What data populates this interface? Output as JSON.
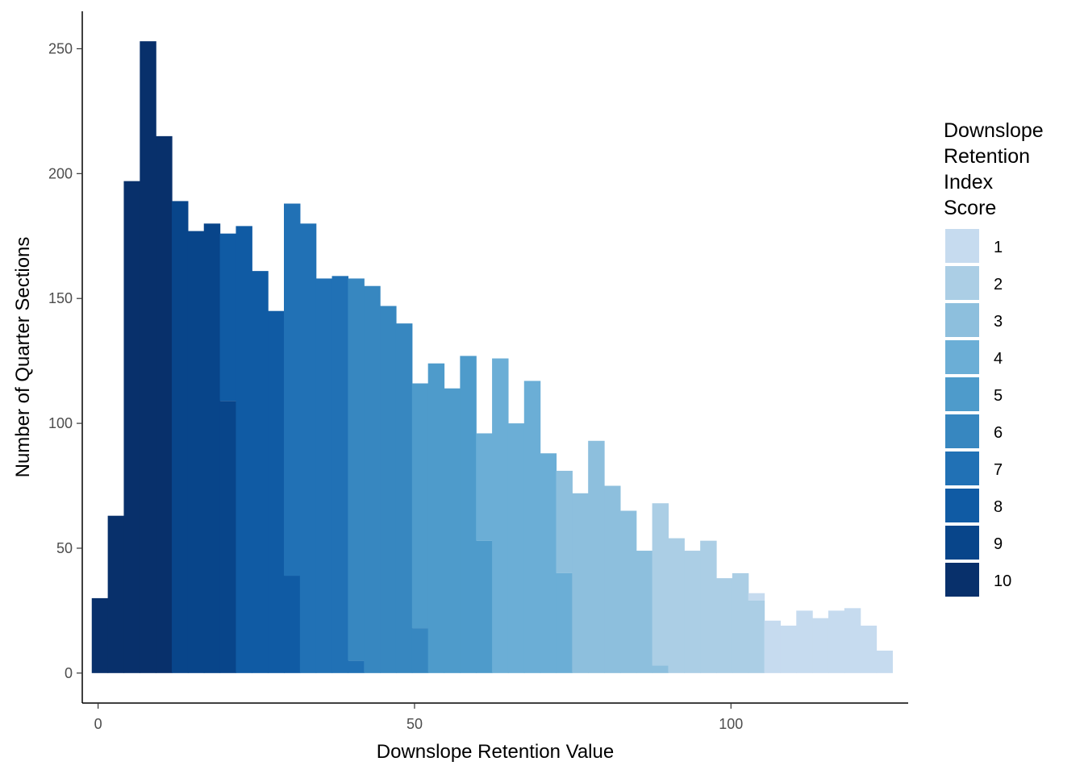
{
  "chart_data": {
    "type": "bar",
    "subtype": "stacked-histogram",
    "xlabel": "Downslope Retention Value",
    "ylabel": "Number of Quarter Sections",
    "xlim": [
      -2.5,
      128
    ],
    "ylim": [
      -12,
      265
    ],
    "x_ticks": [
      0,
      50,
      100
    ],
    "y_ticks": [
      0,
      50,
      100,
      150,
      200,
      250
    ],
    "grid": false,
    "legend": {
      "title_lines": [
        "Downslope",
        "Retention",
        "Index",
        "Score"
      ],
      "placement": "right",
      "items": [
        {
          "label": "1",
          "color": "#c6dbef"
        },
        {
          "label": "2",
          "color": "#abcee5"
        },
        {
          "label": "3",
          "color": "#8dbfdd"
        },
        {
          "label": "4",
          "color": "#6baed6"
        },
        {
          "label": "5",
          "color": "#4e9bcb"
        },
        {
          "label": "6",
          "color": "#3787c0"
        },
        {
          "label": "7",
          "color": "#2171b5"
        },
        {
          "label": "8",
          "color": "#105ba4"
        },
        {
          "label": "9",
          "color": "#08458a"
        },
        {
          "label": "10",
          "color": "#08306b"
        }
      ]
    },
    "bin_width": 2.53,
    "bins": [
      {
        "x0": -1.0,
        "segments": [
          {
            "score": "10",
            "count": 30
          }
        ]
      },
      {
        "x0": 1.53,
        "segments": [
          {
            "score": "10",
            "count": 63
          }
        ]
      },
      {
        "x0": 4.06,
        "segments": [
          {
            "score": "10",
            "count": 197
          }
        ]
      },
      {
        "x0": 6.59,
        "segments": [
          {
            "score": "10",
            "count": 253
          }
        ]
      },
      {
        "x0": 9.12,
        "segments": [
          {
            "score": "10",
            "count": 215
          }
        ]
      },
      {
        "x0": 11.65,
        "segments": [
          {
            "score": "9",
            "count": 189
          }
        ]
      },
      {
        "x0": 14.18,
        "segments": [
          {
            "score": "9",
            "count": 177
          }
        ]
      },
      {
        "x0": 16.71,
        "segments": [
          {
            "score": "9",
            "count": 180
          }
        ]
      },
      {
        "x0": 19.24,
        "segments": [
          {
            "score": "9",
            "count": 109
          },
          {
            "score": "8",
            "count": 67
          }
        ]
      },
      {
        "x0": 21.77,
        "segments": [
          {
            "score": "8",
            "count": 179
          }
        ]
      },
      {
        "x0": 24.3,
        "segments": [
          {
            "score": "8",
            "count": 161
          }
        ]
      },
      {
        "x0": 26.83,
        "segments": [
          {
            "score": "8",
            "count": 145
          }
        ]
      },
      {
        "x0": 29.36,
        "segments": [
          {
            "score": "8",
            "count": 39
          },
          {
            "score": "7",
            "count": 149
          }
        ]
      },
      {
        "x0": 31.89,
        "segments": [
          {
            "score": "7",
            "count": 180
          }
        ]
      },
      {
        "x0": 34.42,
        "segments": [
          {
            "score": "7",
            "count": 158
          }
        ]
      },
      {
        "x0": 36.95,
        "segments": [
          {
            "score": "7",
            "count": 159
          }
        ]
      },
      {
        "x0": 39.48,
        "segments": [
          {
            "score": "7",
            "count": 5
          },
          {
            "score": "6",
            "count": 153
          }
        ]
      },
      {
        "x0": 42.01,
        "segments": [
          {
            "score": "6",
            "count": 155
          }
        ]
      },
      {
        "x0": 44.54,
        "segments": [
          {
            "score": "6",
            "count": 147
          }
        ]
      },
      {
        "x0": 47.07,
        "segments": [
          {
            "score": "6",
            "count": 140
          }
        ]
      },
      {
        "x0": 49.6,
        "segments": [
          {
            "score": "6",
            "count": 18
          },
          {
            "score": "5",
            "count": 98
          }
        ]
      },
      {
        "x0": 52.13,
        "segments": [
          {
            "score": "5",
            "count": 124
          }
        ]
      },
      {
        "x0": 54.66,
        "segments": [
          {
            "score": "5",
            "count": 114
          }
        ]
      },
      {
        "x0": 57.19,
        "segments": [
          {
            "score": "5",
            "count": 127
          }
        ]
      },
      {
        "x0": 59.72,
        "segments": [
          {
            "score": "5",
            "count": 53
          },
          {
            "score": "4",
            "count": 43
          }
        ]
      },
      {
        "x0": 62.25,
        "segments": [
          {
            "score": "4",
            "count": 126
          }
        ]
      },
      {
        "x0": 64.78,
        "segments": [
          {
            "score": "4",
            "count": 100
          }
        ]
      },
      {
        "x0": 67.31,
        "segments": [
          {
            "score": "4",
            "count": 117
          }
        ]
      },
      {
        "x0": 69.84,
        "segments": [
          {
            "score": "4",
            "count": 88
          }
        ]
      },
      {
        "x0": 72.37,
        "segments": [
          {
            "score": "4",
            "count": 40
          },
          {
            "score": "3",
            "count": 41
          }
        ]
      },
      {
        "x0": 74.9,
        "segments": [
          {
            "score": "3",
            "count": 72
          }
        ]
      },
      {
        "x0": 77.43,
        "segments": [
          {
            "score": "3",
            "count": 93
          }
        ]
      },
      {
        "x0": 79.96,
        "segments": [
          {
            "score": "3",
            "count": 75
          }
        ]
      },
      {
        "x0": 82.49,
        "segments": [
          {
            "score": "3",
            "count": 65
          }
        ]
      },
      {
        "x0": 85.02,
        "segments": [
          {
            "score": "3",
            "count": 49
          }
        ]
      },
      {
        "x0": 87.55,
        "segments": [
          {
            "score": "3",
            "count": 3
          },
          {
            "score": "2",
            "count": 65
          }
        ]
      },
      {
        "x0": 90.08,
        "segments": [
          {
            "score": "2",
            "count": 54
          }
        ]
      },
      {
        "x0": 92.61,
        "segments": [
          {
            "score": "2",
            "count": 49
          }
        ]
      },
      {
        "x0": 95.14,
        "segments": [
          {
            "score": "2",
            "count": 53
          }
        ]
      },
      {
        "x0": 97.67,
        "segments": [
          {
            "score": "2",
            "count": 38
          }
        ]
      },
      {
        "x0": 100.2,
        "segments": [
          {
            "score": "2",
            "count": 40
          }
        ]
      },
      {
        "x0": 102.73,
        "segments": [
          {
            "score": "2",
            "count": 29
          },
          {
            "score": "1",
            "count": 3
          }
        ]
      },
      {
        "x0": 105.26,
        "segments": [
          {
            "score": "1",
            "count": 21
          }
        ]
      },
      {
        "x0": 107.79,
        "segments": [
          {
            "score": "1",
            "count": 19
          }
        ]
      },
      {
        "x0": 110.32,
        "segments": [
          {
            "score": "1",
            "count": 25
          }
        ]
      },
      {
        "x0": 112.85,
        "segments": [
          {
            "score": "1",
            "count": 22
          }
        ]
      },
      {
        "x0": 115.38,
        "segments": [
          {
            "score": "1",
            "count": 25
          }
        ]
      },
      {
        "x0": 117.91,
        "segments": [
          {
            "score": "1",
            "count": 26
          }
        ]
      },
      {
        "x0": 120.44,
        "segments": [
          {
            "score": "1",
            "count": 19
          }
        ]
      },
      {
        "x0": 122.97,
        "segments": [
          {
            "score": "1",
            "count": 9
          }
        ]
      }
    ]
  }
}
